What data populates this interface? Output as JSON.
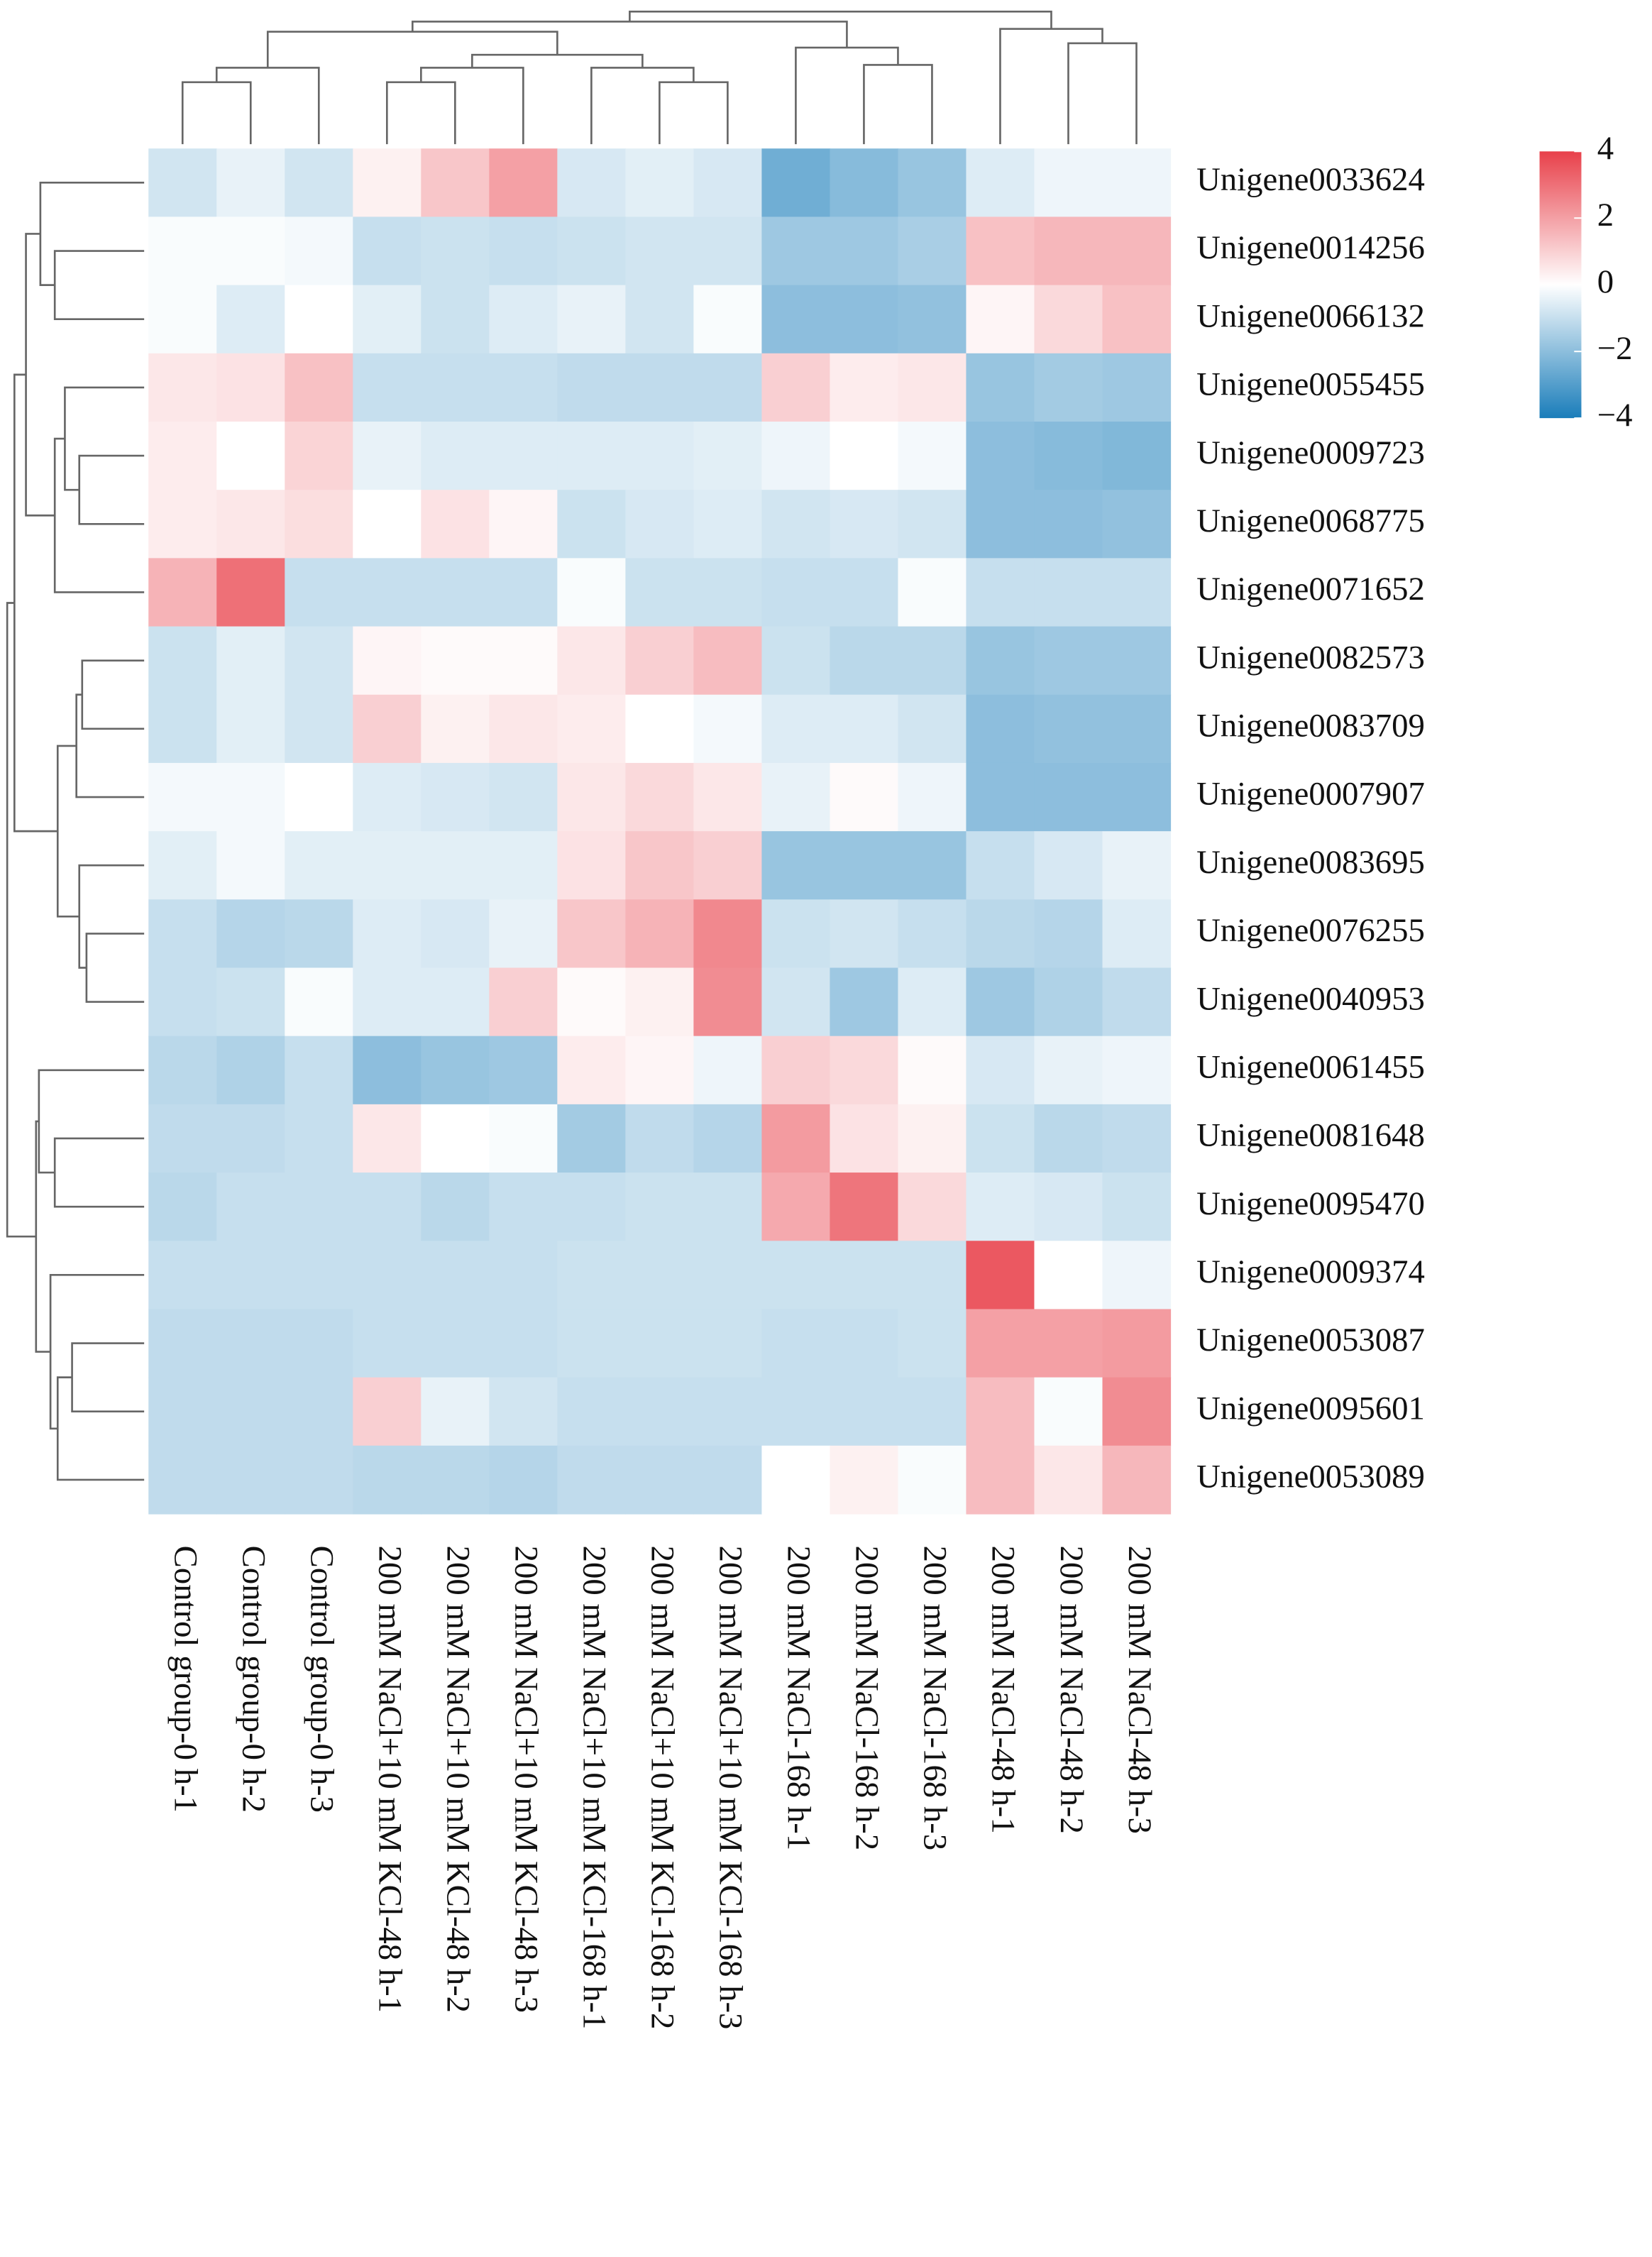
{
  "chart_data": {
    "type": "heatmap",
    "columns": [
      "Control group-0 h-1",
      "Control group-0 h-2",
      "Control group-0 h-3",
      "200 mM NaCl+10 mM KCl-48 h-1",
      "200 mM NaCl+10 mM KCl-48 h-2",
      "200 mM NaCl+10 mM KCl-48 h-3",
      "200 mM NaCl+10 mM KCl-168 h-1",
      "200 mM NaCl+10 mM KCl-168 h-2",
      "200 mM NaCl+10 mM KCl-168 h-3",
      "200 mM NaCl-168 h-1",
      "200 mM NaCl-168 h-2",
      "200 mM NaCl-168 h-3",
      "200 mM NaCl-48 h-1",
      "200 mM NaCl-48 h-2",
      "200 mM NaCl-48 h-3"
    ],
    "rows": [
      "Unigene0033624",
      "Unigene0014256",
      "Unigene0066132",
      "Unigene0055455",
      "Unigene0009723",
      "Unigene0068775",
      "Unigene0071652",
      "Unigene0082573",
      "Unigene0083709",
      "Unigene0007907",
      "Unigene0083695",
      "Unigene0076255",
      "Unigene0040953",
      "Unigene0061455",
      "Unigene0081648",
      "Unigene0095470",
      "Unigene0009374",
      "Unigene0053087",
      "Unigene0095601",
      "Unigene0053089"
    ],
    "values": [
      [
        -0.8,
        -0.4,
        -0.8,
        0.3,
        1.2,
        2.0,
        -0.7,
        -0.5,
        -0.7,
        -2.5,
        -2.1,
        -1.8,
        -0.6,
        -0.3,
        -0.3
      ],
      [
        -0.1,
        -0.1,
        -0.2,
        -1.0,
        -0.9,
        -1.0,
        -0.9,
        -0.8,
        -0.8,
        -1.7,
        -1.7,
        -1.5,
        1.3,
        1.5,
        1.5
      ],
      [
        -0.1,
        -0.6,
        0,
        -0.5,
        -0.9,
        -0.6,
        -0.4,
        -0.8,
        -0.1,
        -2.0,
        -2.0,
        -1.9,
        0.2,
        0.8,
        1.3
      ],
      [
        0.5,
        0.6,
        1.3,
        -1.0,
        -1.0,
        -1.0,
        -1.1,
        -1.1,
        -1.1,
        1.0,
        0.4,
        0.5,
        -1.8,
        -1.6,
        -1.7
      ],
      [
        0.4,
        0,
        0.9,
        -0.4,
        -0.6,
        -0.6,
        -0.6,
        -0.6,
        -0.5,
        -0.3,
        0,
        -0.2,
        -2.0,
        -2.1,
        -2.2
      ],
      [
        0.4,
        0.5,
        0.7,
        0,
        0.6,
        0.2,
        -0.9,
        -0.7,
        -0.6,
        -0.8,
        -0.7,
        -0.8,
        -2.0,
        -2.0,
        -1.9
      ],
      [
        1.6,
        3.0,
        -1.0,
        -1.0,
        -1.0,
        -1.0,
        -0.1,
        -0.9,
        -0.9,
        -1.0,
        -1.0,
        -0.1,
        -1.0,
        -1.0,
        -1.0
      ],
      [
        -0.9,
        -0.5,
        -0.8,
        0.2,
        0.1,
        0.1,
        0.5,
        1.0,
        1.4,
        -0.9,
        -1.2,
        -1.2,
        -1.8,
        -1.7,
        -1.7
      ],
      [
        -0.9,
        -0.5,
        -0.8,
        1.0,
        0.3,
        0.5,
        0.4,
        0,
        -0.2,
        -0.6,
        -0.6,
        -0.8,
        -2.0,
        -1.9,
        -1.9
      ],
      [
        -0.2,
        -0.2,
        0,
        -0.6,
        -0.7,
        -0.8,
        0.5,
        0.8,
        0.5,
        -0.4,
        0.1,
        -0.3,
        -2.0,
        -2.0,
        -2.0
      ],
      [
        -0.5,
        -0.2,
        -0.5,
        -0.5,
        -0.5,
        -0.5,
        0.6,
        1.2,
        1.0,
        -1.8,
        -1.8,
        -1.8,
        -1.0,
        -0.7,
        -0.4
      ],
      [
        -1.0,
        -1.3,
        -1.2,
        -0.6,
        -0.7,
        -0.4,
        1.2,
        1.6,
        2.5,
        -0.9,
        -0.8,
        -1.0,
        -1.2,
        -1.3,
        -0.6
      ],
      [
        -1.0,
        -0.9,
        -0.1,
        -0.6,
        -0.6,
        1.0,
        0.1,
        0.3,
        2.4,
        -0.8,
        -1.7,
        -0.6,
        -1.7,
        -1.4,
        -1.1
      ],
      [
        -1.2,
        -1.4,
        -1.0,
        -2.0,
        -1.8,
        -1.7,
        0.4,
        0.2,
        -0.3,
        1.0,
        0.8,
        0.1,
        -0.7,
        -0.4,
        -0.3
      ],
      [
        -1.1,
        -1.1,
        -1.0,
        0.5,
        0,
        -0.1,
        -1.6,
        -1.1,
        -1.3,
        2.1,
        0.6,
        0.3,
        -0.9,
        -1.2,
        -1.1
      ],
      [
        -1.2,
        -1.0,
        -1.0,
        -1.0,
        -1.2,
        -1.0,
        -1.0,
        -0.9,
        -0.9,
        1.8,
        2.9,
        0.8,
        -0.6,
        -0.7,
        -0.9
      ],
      [
        -1.0,
        -1.0,
        -1.0,
        -1.0,
        -1.0,
        -1.0,
        -0.9,
        -0.9,
        -0.9,
        -0.9,
        -0.9,
        -0.9,
        3.5,
        0,
        -0.3
      ],
      [
        -1.1,
        -1.1,
        -1.1,
        -1.0,
        -1.0,
        -1.0,
        -0.9,
        -0.9,
        -0.9,
        -1.0,
        -1.0,
        -0.9,
        2.0,
        2.0,
        2.1
      ],
      [
        -1.1,
        -1.1,
        -1.1,
        1.0,
        -0.4,
        -0.8,
        -1.0,
        -1.0,
        -1.0,
        -1.0,
        -1.0,
        -1.0,
        1.4,
        -0.1,
        2.4
      ],
      [
        -1.1,
        -1.1,
        -1.1,
        -1.2,
        -1.2,
        -1.3,
        -1.1,
        -1.1,
        -1.1,
        0,
        0.3,
        -0.1,
        1.4,
        0.5,
        1.5
      ]
    ],
    "colorscale": [
      "#1a7dba",
      "#ffffff",
      "#e8404a"
    ],
    "clim": [
      -4,
      4
    ],
    "cticks": [
      4,
      2,
      0,
      {
        "value": -2,
        "label": "−2"
      },
      {
        "value": -4,
        "label": "−4"
      }
    ]
  }
}
